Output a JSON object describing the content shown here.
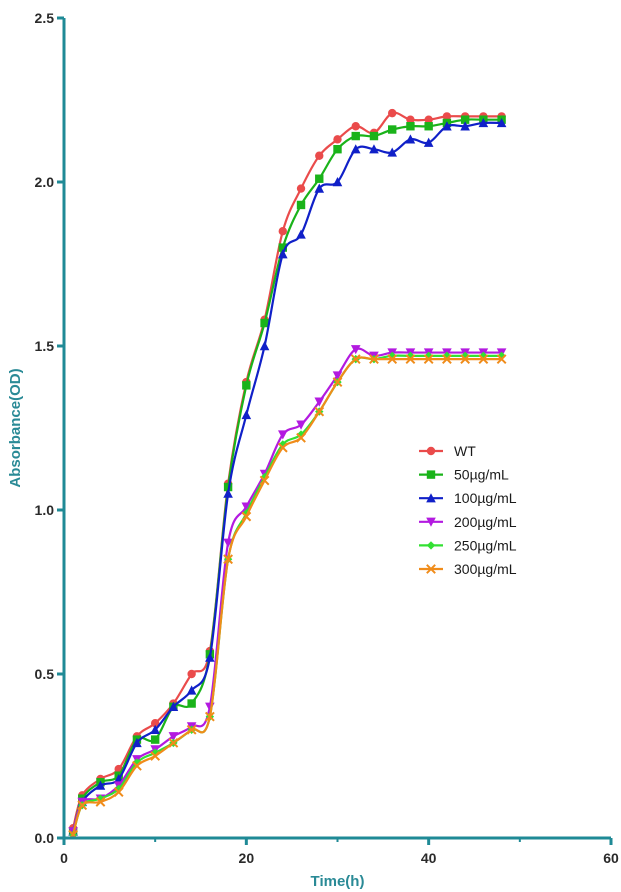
{
  "chart_data": {
    "type": "line",
    "title": "",
    "xlabel": "Time(h)",
    "ylabel": "Absorbance(OD)",
    "xlim": [
      0,
      60
    ],
    "ylim": [
      0,
      2.5
    ],
    "xticks": [
      0,
      20,
      40,
      60
    ],
    "yticks": [
      0.0,
      0.5,
      1.0,
      1.5,
      2.0,
      2.5
    ],
    "xtick_labels": [
      "0",
      "20",
      "40",
      "60"
    ],
    "ytick_labels": [
      "0.0",
      "0.5",
      "1.0",
      "1.5",
      "2.0",
      "2.5"
    ],
    "grid": false,
    "legend_position": "right-middle",
    "axis_color": "#1f8a96",
    "x": [
      1,
      2,
      4,
      6,
      8,
      10,
      12,
      14,
      16,
      18,
      20,
      22,
      24,
      26,
      28,
      30,
      32,
      34,
      36,
      38,
      40,
      42,
      44,
      46,
      48
    ],
    "series": [
      {
        "name": "WT",
        "color": "#ea4b4b",
        "marker": "circle",
        "values": [
          0.03,
          0.13,
          0.18,
          0.21,
          0.31,
          0.35,
          0.41,
          0.5,
          0.57,
          1.08,
          1.39,
          1.58,
          1.85,
          1.98,
          2.08,
          2.13,
          2.17,
          2.15,
          2.21,
          2.19,
          2.19,
          2.2,
          2.2,
          2.2,
          2.2
        ]
      },
      {
        "name": "50µg/mL",
        "color": "#1ab31a",
        "marker": "square",
        "values": [
          0.02,
          0.12,
          0.17,
          0.19,
          0.3,
          0.3,
          0.4,
          0.41,
          0.56,
          1.07,
          1.38,
          1.57,
          1.8,
          1.93,
          2.01,
          2.1,
          2.14,
          2.14,
          2.16,
          2.17,
          2.17,
          2.18,
          2.19,
          2.19,
          2.19
        ]
      },
      {
        "name": "100µg/mL",
        "color": "#1020c8",
        "marker": "triangle-up",
        "values": [
          0.02,
          0.11,
          0.16,
          0.18,
          0.29,
          0.33,
          0.4,
          0.45,
          0.55,
          1.05,
          1.29,
          1.5,
          1.78,
          1.84,
          1.98,
          2.0,
          2.1,
          2.1,
          2.09,
          2.13,
          2.12,
          2.17,
          2.17,
          2.18,
          2.18
        ]
      },
      {
        "name": "200µg/mL",
        "color": "#b31ae0",
        "marker": "triangle-down",
        "values": [
          0.02,
          0.11,
          0.12,
          0.16,
          0.24,
          0.27,
          0.31,
          0.34,
          0.4,
          0.9,
          1.01,
          1.11,
          1.23,
          1.26,
          1.33,
          1.41,
          1.49,
          1.47,
          1.48,
          1.48,
          1.48,
          1.48,
          1.48,
          1.48,
          1.48
        ]
      },
      {
        "name": "250µg/mL",
        "color": "#33e033",
        "marker": "diamond",
        "values": [
          0.01,
          0.1,
          0.12,
          0.15,
          0.23,
          0.26,
          0.29,
          0.33,
          0.37,
          0.85,
          0.99,
          1.1,
          1.2,
          1.23,
          1.3,
          1.39,
          1.46,
          1.46,
          1.47,
          1.47,
          1.47,
          1.47,
          1.47,
          1.47,
          1.47
        ]
      },
      {
        "name": "300µg/mL",
        "color": "#f08c1a",
        "marker": "x",
        "values": [
          0.01,
          0.1,
          0.11,
          0.14,
          0.22,
          0.25,
          0.29,
          0.33,
          0.37,
          0.85,
          0.98,
          1.09,
          1.19,
          1.22,
          1.3,
          1.39,
          1.46,
          1.46,
          1.46,
          1.46,
          1.46,
          1.46,
          1.46,
          1.46,
          1.46
        ]
      }
    ]
  }
}
